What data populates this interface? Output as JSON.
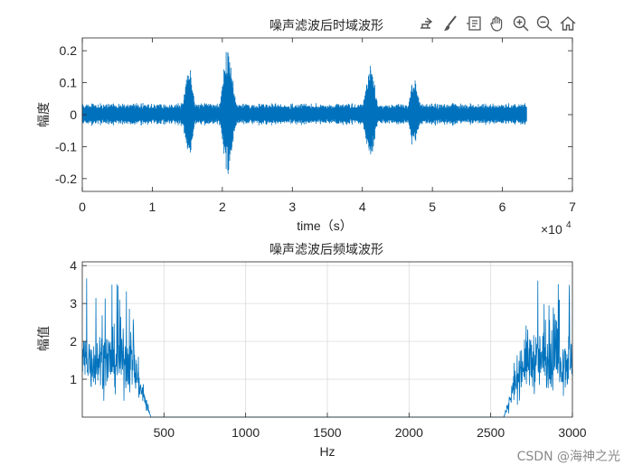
{
  "toolbar": {
    "items": [
      {
        "icon": "export-icon"
      },
      {
        "icon": "brush-icon"
      },
      {
        "icon": "datatip-icon"
      },
      {
        "icon": "pan-hand-icon"
      },
      {
        "icon": "zoom-in-icon"
      },
      {
        "icon": "zoom-out-icon"
      },
      {
        "icon": "home-icon"
      }
    ]
  },
  "watermark": "CSDN @海神之光",
  "chart_data": [
    {
      "type": "line",
      "title": "噪声滤波后时域波形",
      "xlabel": "time（s）",
      "ylabel": "幅度",
      "xlim": [
        0,
        70000
      ],
      "ylim": [
        -0.24,
        0.24
      ],
      "x_ticks": [
        0,
        10000,
        20000,
        30000,
        40000,
        50000,
        60000,
        70000
      ],
      "x_tick_labels": [
        "0",
        "1",
        "2",
        "3",
        "4",
        "5",
        "6",
        "7"
      ],
      "x_exponent_label": "×10",
      "x_exponent_power": "4",
      "y_ticks": [
        -0.2,
        -0.1,
        0,
        0.1,
        0.2
      ],
      "y_tick_labels": [
        "-0.2",
        "-0.1",
        "0",
        "0.1",
        "0.2"
      ],
      "grid": false,
      "color": "#0072BD",
      "signal": {
        "sample_count": 63500,
        "noise_amplitude": 0.03,
        "bursts": [
          {
            "center": 15200,
            "width": 1100,
            "amplitude": 0.16
          },
          {
            "center": 20800,
            "width": 1300,
            "amplitude": 0.23
          },
          {
            "center": 41100,
            "width": 1300,
            "amplitude": 0.17
          },
          {
            "center": 47400,
            "width": 1200,
            "amplitude": 0.12
          }
        ]
      }
    },
    {
      "type": "line",
      "title": "噪声滤波后频域波形",
      "xlabel": "Hz",
      "ylabel": "幅值",
      "xlim": [
        0,
        3000
      ],
      "ylim": [
        0,
        4.1
      ],
      "x_ticks": [
        500,
        1000,
        1500,
        2000,
        2500,
        3000
      ],
      "x_tick_labels": [
        "500",
        "1000",
        "1500",
        "2000",
        "2500",
        "3000"
      ],
      "y_ticks": [
        1,
        2,
        3,
        4
      ],
      "y_tick_labels": [
        "1",
        "2",
        "3",
        "4"
      ],
      "grid": true,
      "color": "#0072BD",
      "spectrum": {
        "passband_low_hz": [
          0,
          300
        ],
        "passband_high_hz": [
          2700,
          3000
        ],
        "rolloff_hz": 120,
        "mean_level": 1.5,
        "peak_level": 4.1
      }
    }
  ]
}
